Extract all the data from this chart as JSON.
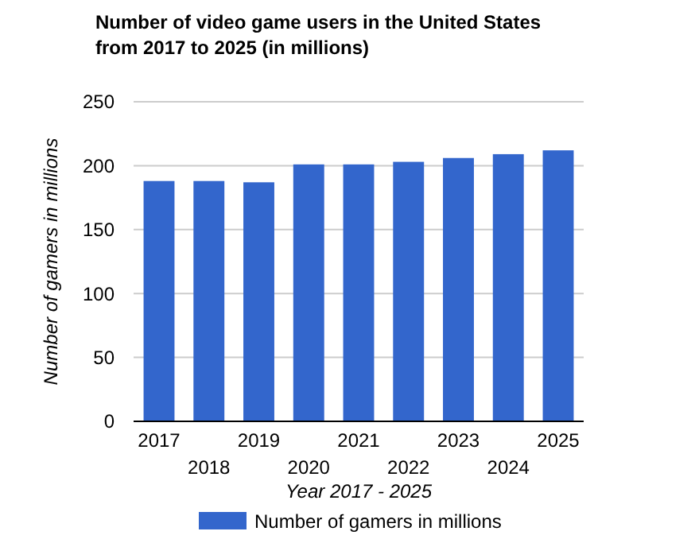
{
  "chart_data": {
    "type": "bar",
    "title": "Number of video game users in the United States from 2017 to 2025 (in millions)",
    "xlabel": "Year 2017 - 2025",
    "ylabel": "Number of gamers in millions",
    "categories": [
      "2017",
      "2018",
      "2019",
      "2020",
      "2021",
      "2022",
      "2023",
      "2024",
      "2025"
    ],
    "series": [
      {
        "name": "Number of gamers in millions",
        "color": "#3366cc",
        "values": [
          188,
          188,
          187,
          201,
          201,
          203,
          206,
          209,
          212
        ]
      }
    ],
    "ylim": [
      0,
      250
    ],
    "yticks": [
      0,
      50,
      100,
      150,
      200,
      250
    ],
    "grid": "y",
    "legend": "bottom"
  }
}
